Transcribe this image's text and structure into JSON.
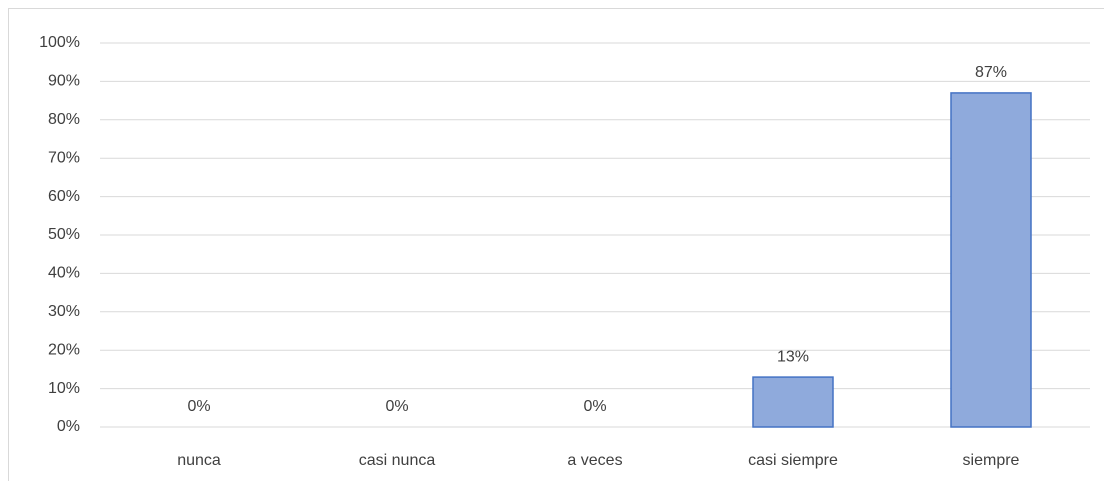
{
  "chart_data": {
    "type": "bar",
    "categories": [
      "nunca",
      "casi nunca",
      "a veces",
      "casi siempre",
      "siempre"
    ],
    "values": [
      0,
      0,
      0,
      13,
      87
    ],
    "value_labels": [
      "0%",
      "0%",
      "0%",
      "13%",
      "87%"
    ],
    "color": "#8faadc",
    "edge_color": "#4472c4",
    "ylim": [
      0,
      100
    ],
    "yticks": [
      {
        "value": 0,
        "label": "0%"
      },
      {
        "value": 10,
        "label": "10%"
      },
      {
        "value": 20,
        "label": "20%"
      },
      {
        "value": 30,
        "label": "30%"
      },
      {
        "value": 40,
        "label": "40%"
      },
      {
        "value": 50,
        "label": "50%"
      },
      {
        "value": 60,
        "label": "60%"
      },
      {
        "value": 70,
        "label": "70%"
      },
      {
        "value": 80,
        "label": "80%"
      },
      {
        "value": 90,
        "label": "90%"
      },
      {
        "value": 100,
        "label": "100%"
      }
    ],
    "grid": true
  }
}
